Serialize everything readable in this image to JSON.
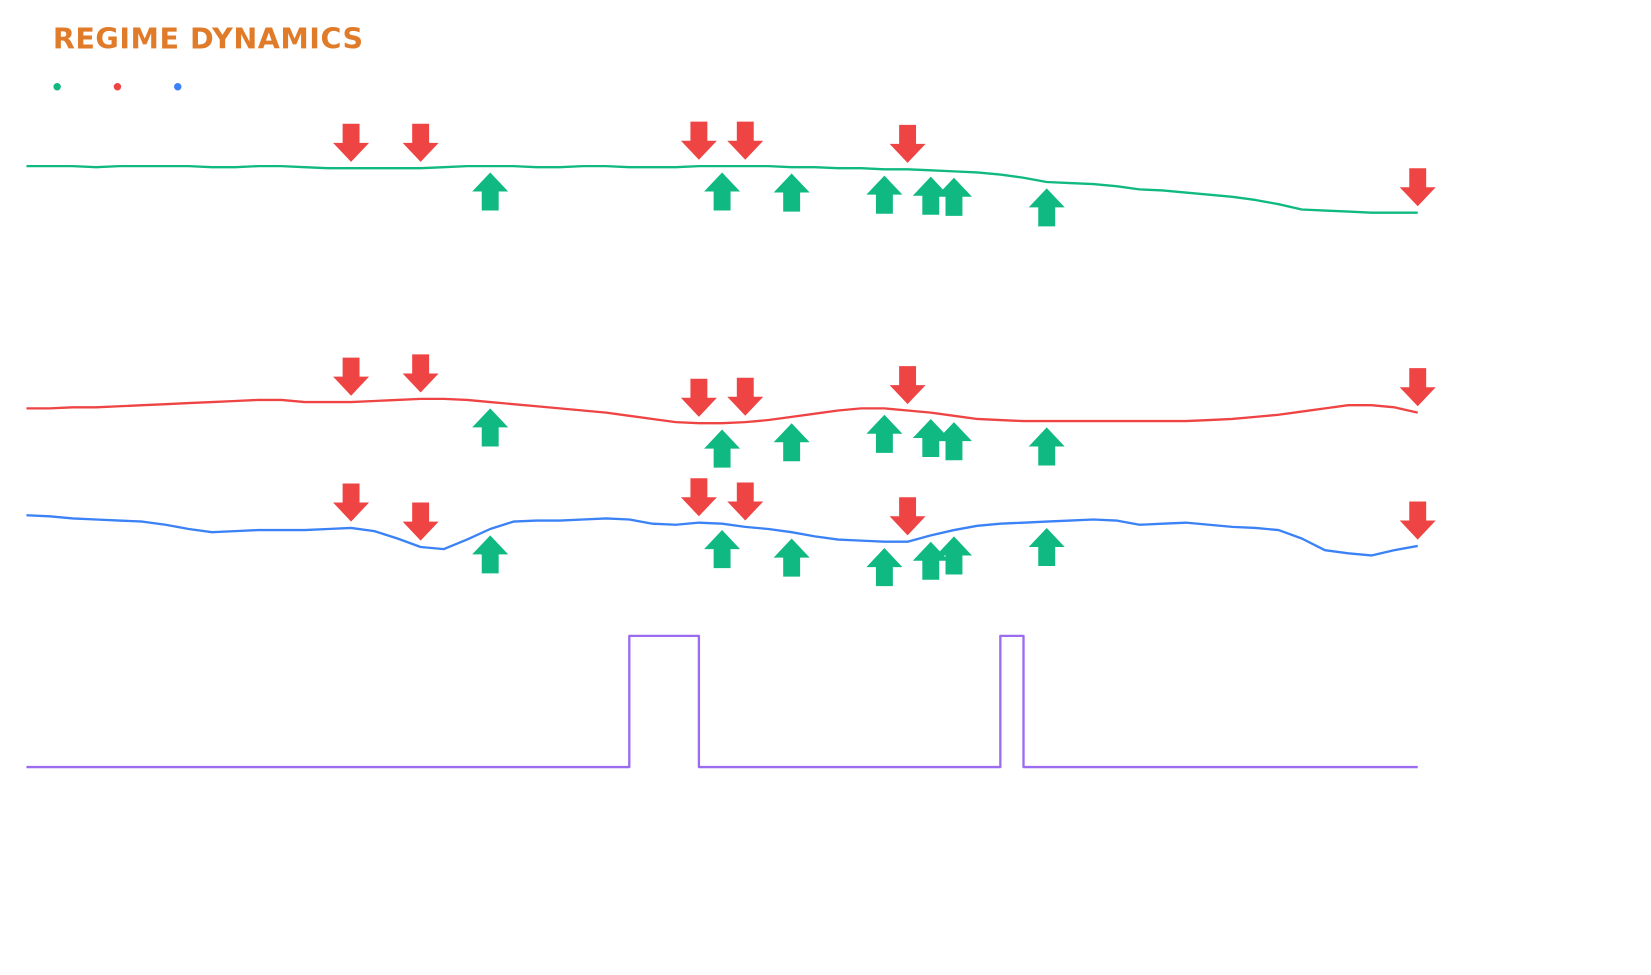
{
  "chart_data": {
    "type": "line",
    "title": "REGIME DYNAMICS",
    "ylim": [
      0,
      650
    ],
    "series": [
      {
        "color": "#10b981",
        "step": false,
        "values": [
          603,
          603,
          603,
          602,
          603,
          603,
          603,
          603,
          602,
          602,
          603,
          603,
          602,
          601,
          601,
          601,
          601,
          601,
          602,
          603,
          603,
          603,
          602,
          602,
          603,
          603,
          602,
          602,
          602,
          603,
          603,
          603,
          603,
          602,
          602,
          601,
          601,
          600,
          600,
          599,
          598,
          597,
          595,
          592,
          588,
          587,
          586,
          584,
          581,
          580,
          578,
          576,
          574,
          571,
          567,
          562,
          561,
          560,
          559,
          559,
          559
        ]
      },
      {
        "color": "#ef4444",
        "step": false,
        "values": [
          374,
          374,
          375,
          375,
          376,
          377,
          378,
          379,
          380,
          381,
          382,
          382,
          380,
          380,
          380,
          381,
          382,
          383,
          383,
          382,
          380,
          378,
          376,
          374,
          372,
          370,
          367,
          364,
          361,
          360,
          360,
          361,
          363,
          366,
          369,
          372,
          374,
          374,
          372,
          370,
          367,
          364,
          363,
          362,
          362,
          362,
          362,
          362,
          362,
          362,
          362,
          363,
          364,
          366,
          368,
          371,
          374,
          377,
          377,
          375,
          370
        ]
      },
      {
        "color": "#3b82f6",
        "step": false,
        "values": [
          273,
          272,
          270,
          269,
          268,
          267,
          264,
          260,
          257,
          258,
          259,
          259,
          259,
          260,
          261,
          258,
          251,
          243,
          241,
          250,
          260,
          267,
          268,
          268,
          269,
          270,
          269,
          265,
          264,
          266,
          265,
          262,
          260,
          257,
          253,
          250,
          249,
          248,
          248,
          254,
          259,
          263,
          265,
          266,
          267,
          268,
          269,
          268,
          264,
          265,
          266,
          264,
          262,
          261,
          259,
          251,
          240,
          237,
          235,
          240,
          244
        ]
      },
      {
        "color": "#9b6cf0",
        "step": true,
        "values": [
          35,
          35,
          35,
          35,
          35,
          35,
          35,
          35,
          35,
          35,
          35,
          35,
          35,
          35,
          35,
          35,
          35,
          35,
          35,
          35,
          35,
          35,
          35,
          35,
          35,
          35,
          159,
          159,
          159,
          35,
          35,
          35,
          35,
          35,
          35,
          35,
          35,
          35,
          35,
          35,
          35,
          35,
          159,
          35,
          35,
          35,
          35,
          35,
          35,
          35,
          35,
          35,
          35,
          35,
          35,
          35,
          35,
          35,
          35,
          35,
          35
        ]
      }
    ],
    "signals": {
      "down": [
        14,
        17,
        29,
        31,
        38,
        60
      ],
      "up": [
        20,
        30,
        33,
        37,
        39,
        40,
        44
      ],
      "down_color": "#ef4444",
      "up_color": "#10b981"
    }
  }
}
